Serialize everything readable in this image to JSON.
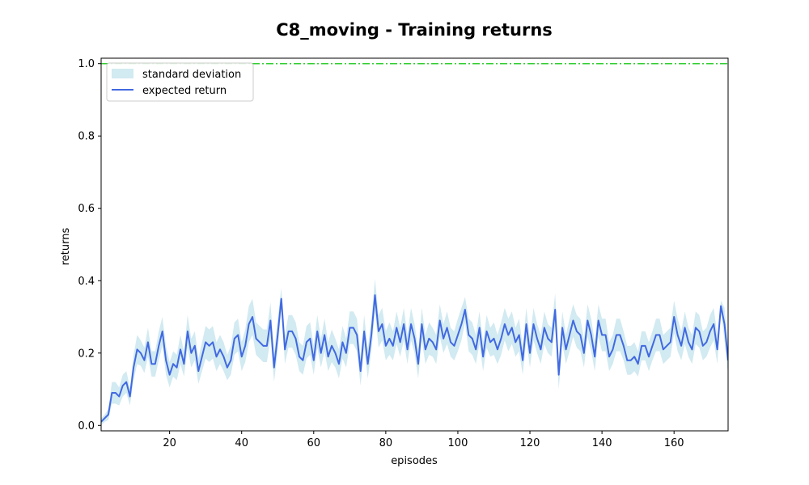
{
  "chart_data": {
    "type": "line",
    "title": "C8_moving - Training returns",
    "xlabel": "episodes",
    "ylabel": "returns",
    "xlim": [
      1,
      175
    ],
    "ylim": [
      -0.015,
      1.015
    ],
    "xticks": [
      20,
      40,
      60,
      80,
      100,
      120,
      140,
      160
    ],
    "xtick_labels": [
      "20",
      "40",
      "60",
      "80",
      "100",
      "120",
      "140",
      "160"
    ],
    "yticks": [
      0.0,
      0.2,
      0.4,
      0.6,
      0.8,
      1.0
    ],
    "ytick_labels": [
      "0.0",
      "0.2",
      "0.4",
      "0.6",
      "0.8",
      "1.0"
    ],
    "grid": false,
    "legend": {
      "position": "top-left",
      "entries": [
        {
          "label": "standard deviation",
          "kind": "band",
          "color": "#add8e6"
        },
        {
          "label": "expected return",
          "kind": "line",
          "color": "#4169e1"
        }
      ]
    },
    "reference_line": {
      "y": 1.0,
      "color": "#32cd32",
      "style": "dash-dot"
    },
    "x": [
      1,
      2,
      3,
      4,
      5,
      6,
      7,
      8,
      9,
      10,
      11,
      12,
      13,
      14,
      15,
      16,
      17,
      18,
      19,
      20,
      21,
      22,
      23,
      24,
      25,
      26,
      27,
      28,
      29,
      30,
      31,
      32,
      33,
      34,
      35,
      36,
      37,
      38,
      39,
      40,
      41,
      42,
      43,
      44,
      45,
      46,
      47,
      48,
      49,
      50,
      51,
      52,
      53,
      54,
      55,
      56,
      57,
      58,
      59,
      60,
      61,
      62,
      63,
      64,
      65,
      66,
      67,
      68,
      69,
      70,
      71,
      72,
      73,
      74,
      75,
      76,
      77,
      78,
      79,
      80,
      81,
      82,
      83,
      84,
      85,
      86,
      87,
      88,
      89,
      90,
      91,
      92,
      93,
      94,
      95,
      96,
      97,
      98,
      99,
      100,
      101,
      102,
      103,
      104,
      105,
      106,
      107,
      108,
      109,
      110,
      111,
      112,
      113,
      114,
      115,
      116,
      117,
      118,
      119,
      120,
      121,
      122,
      123,
      124,
      125,
      126,
      127,
      128,
      129,
      130,
      131,
      132,
      133,
      134,
      135,
      136,
      137,
      138,
      139,
      140,
      141,
      142,
      143,
      144,
      145,
      146,
      147,
      148,
      149,
      150,
      151,
      152,
      153,
      154,
      155,
      156,
      157,
      158,
      159,
      160,
      161,
      162,
      163,
      164,
      165,
      166,
      167,
      168,
      169,
      170,
      171,
      172,
      173,
      174,
      175
    ],
    "series": [
      {
        "name": "expected return",
        "color": "#4169e1",
        "mean": [
          0.01,
          0.02,
          0.03,
          0.09,
          0.09,
          0.08,
          0.11,
          0.12,
          0.08,
          0.16,
          0.21,
          0.2,
          0.18,
          0.23,
          0.17,
          0.17,
          0.22,
          0.26,
          0.18,
          0.14,
          0.17,
          0.16,
          0.21,
          0.17,
          0.26,
          0.2,
          0.22,
          0.15,
          0.19,
          0.23,
          0.22,
          0.23,
          0.19,
          0.21,
          0.19,
          0.16,
          0.18,
          0.24,
          0.25,
          0.19,
          0.22,
          0.28,
          0.3,
          0.24,
          0.23,
          0.22,
          0.22,
          0.29,
          0.16,
          0.25,
          0.35,
          0.21,
          0.26,
          0.26,
          0.24,
          0.19,
          0.18,
          0.23,
          0.24,
          0.18,
          0.26,
          0.2,
          0.25,
          0.19,
          0.22,
          0.2,
          0.17,
          0.23,
          0.2,
          0.27,
          0.27,
          0.25,
          0.15,
          0.26,
          0.17,
          0.25,
          0.36,
          0.26,
          0.28,
          0.22,
          0.24,
          0.22,
          0.27,
          0.23,
          0.28,
          0.21,
          0.28,
          0.24,
          0.17,
          0.28,
          0.21,
          0.24,
          0.23,
          0.21,
          0.29,
          0.24,
          0.27,
          0.23,
          0.22,
          0.25,
          0.28,
          0.32,
          0.25,
          0.24,
          0.21,
          0.27,
          0.19,
          0.26,
          0.23,
          0.24,
          0.21,
          0.24,
          0.28,
          0.25,
          0.27,
          0.23,
          0.25,
          0.18,
          0.28,
          0.2,
          0.28,
          0.24,
          0.21,
          0.27,
          0.24,
          0.23,
          0.32,
          0.14,
          0.27,
          0.21,
          0.25,
          0.29,
          0.26,
          0.25,
          0.2,
          0.29,
          0.25,
          0.19,
          0.29,
          0.25,
          0.25,
          0.19,
          0.21,
          0.25,
          0.25,
          0.22,
          0.18,
          0.18,
          0.19,
          0.17,
          0.22,
          0.22,
          0.19,
          0.22,
          0.25,
          0.25,
          0.21,
          0.22,
          0.23,
          0.3,
          0.25,
          0.22,
          0.27,
          0.23,
          0.21,
          0.27,
          0.26,
          0.22,
          0.23,
          0.26,
          0.28,
          0.21,
          0.33,
          0.28,
          0.18
        ],
        "std": [
          0.01,
          0.01,
          0.015,
          0.03,
          0.03,
          0.025,
          0.03,
          0.03,
          0.025,
          0.035,
          0.04,
          0.035,
          0.035,
          0.04,
          0.035,
          0.035,
          0.04,
          0.04,
          0.04,
          0.035,
          0.035,
          0.035,
          0.04,
          0.035,
          0.045,
          0.04,
          0.04,
          0.035,
          0.04,
          0.045,
          0.045,
          0.045,
          0.04,
          0.04,
          0.04,
          0.035,
          0.04,
          0.045,
          0.045,
          0.04,
          0.045,
          0.05,
          0.05,
          0.045,
          0.045,
          0.045,
          0.045,
          0.05,
          0.04,
          0.045,
          0.03,
          0.04,
          0.045,
          0.045,
          0.045,
          0.04,
          0.04,
          0.045,
          0.045,
          0.04,
          0.045,
          0.04,
          0.045,
          0.04,
          0.045,
          0.04,
          0.04,
          0.045,
          0.04,
          0.045,
          0.045,
          0.045,
          0.04,
          0.045,
          0.04,
          0.045,
          0.045,
          0.045,
          0.045,
          0.04,
          0.045,
          0.04,
          0.045,
          0.04,
          0.045,
          0.04,
          0.045,
          0.04,
          0.04,
          0.045,
          0.04,
          0.045,
          0.04,
          0.04,
          0.045,
          0.04,
          0.045,
          0.04,
          0.04,
          0.045,
          0.045,
          0.035,
          0.045,
          0.045,
          0.04,
          0.045,
          0.04,
          0.045,
          0.04,
          0.045,
          0.04,
          0.045,
          0.045,
          0.045,
          0.045,
          0.04,
          0.045,
          0.04,
          0.045,
          0.04,
          0.045,
          0.04,
          0.04,
          0.045,
          0.04,
          0.04,
          0.045,
          0.04,
          0.045,
          0.04,
          0.045,
          0.045,
          0.045,
          0.045,
          0.04,
          0.045,
          0.045,
          0.04,
          0.045,
          0.045,
          0.045,
          0.04,
          0.04,
          0.045,
          0.045,
          0.04,
          0.04,
          0.04,
          0.04,
          0.035,
          0.04,
          0.04,
          0.04,
          0.04,
          0.045,
          0.045,
          0.04,
          0.04,
          0.04,
          0.045,
          0.045,
          0.04,
          0.045,
          0.04,
          0.04,
          0.045,
          0.045,
          0.04,
          0.04,
          0.045,
          0.045,
          0.04,
          0.015,
          0.045,
          0.04
        ]
      }
    ]
  }
}
